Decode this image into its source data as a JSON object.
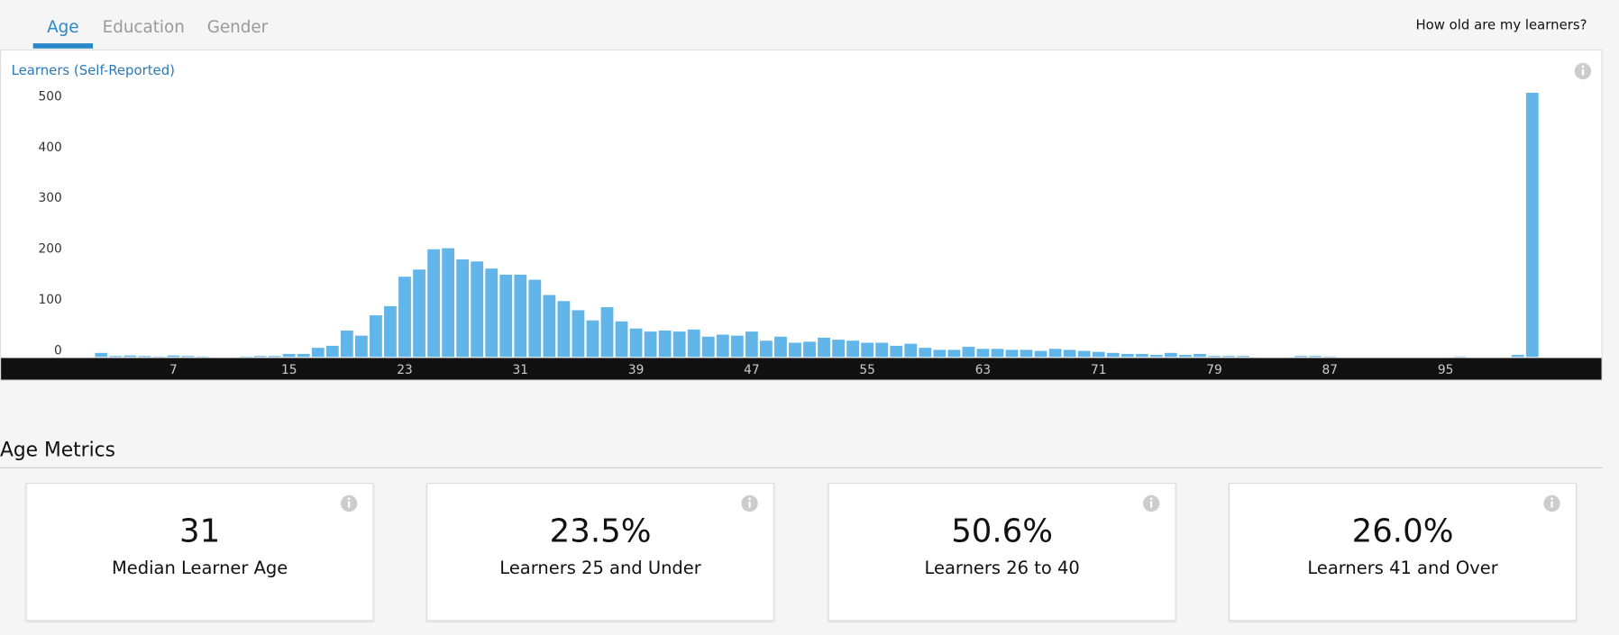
{
  "tabs": [
    "Age",
    "Education",
    "Gender"
  ],
  "help_text": "How old are my learners?",
  "chart_data": {
    "type": "bar",
    "ylabel": "Learners (Self-Reported)",
    "color": "#62b5e9",
    "x": [
      2,
      3,
      4,
      5,
      6,
      7,
      8,
      9,
      10,
      11,
      12,
      13,
      14,
      15,
      16,
      17,
      18,
      19,
      20,
      21,
      22,
      23,
      24,
      25,
      26,
      27,
      28,
      29,
      30,
      31,
      32,
      33,
      34,
      35,
      36,
      37,
      38,
      39,
      40,
      41,
      42,
      43,
      44,
      45,
      46,
      47,
      48,
      49,
      50,
      51,
      52,
      53,
      54,
      55,
      56,
      57,
      58,
      59,
      60,
      61,
      62,
      63,
      64,
      65,
      66,
      67,
      68,
      69,
      70,
      71,
      72,
      73,
      74,
      75,
      76,
      77,
      78,
      79,
      80,
      81,
      82,
      83,
      84,
      85,
      86,
      87,
      88,
      89,
      90,
      91,
      92,
      93,
      94,
      95,
      96,
      97,
      98,
      99,
      100,
      101
    ],
    "values": [
      8,
      2,
      3,
      2,
      1,
      3,
      2,
      1,
      0,
      0,
      1,
      2,
      2,
      6,
      6,
      18,
      22,
      52,
      42,
      82,
      100,
      158,
      172,
      212,
      214,
      192,
      188,
      174,
      162,
      162,
      152,
      122,
      110,
      92,
      72,
      98,
      70,
      56,
      50,
      52,
      50,
      54,
      40,
      44,
      42,
      50,
      32,
      40,
      28,
      30,
      38,
      34,
      32,
      28,
      28,
      22,
      26,
      18,
      14,
      14,
      20,
      16,
      16,
      14,
      14,
      12,
      16,
      14,
      12,
      10,
      8,
      6,
      6,
      4,
      8,
      4,
      6,
      2,
      2,
      2,
      0,
      0,
      0,
      2,
      2,
      1,
      0,
      0,
      0,
      0,
      0,
      0,
      0,
      0,
      1,
      0,
      0,
      0,
      4,
      520
    ],
    "xlim": [
      -5,
      106
    ],
    "xticks": [
      7,
      15,
      23,
      31,
      39,
      47,
      55,
      63,
      71,
      79,
      87,
      95
    ],
    "ylim": [
      0,
      530
    ],
    "yticks": [
      0,
      100,
      200,
      300,
      400,
      500
    ]
  },
  "metrics_title": "Age Metrics",
  "metrics": [
    {
      "value": "31",
      "label": "Median Learner Age"
    },
    {
      "value": "23.5%",
      "label": "Learners 25 and Under"
    },
    {
      "value": "50.6%",
      "label": "Learners 26 to 40"
    },
    {
      "value": "26.0%",
      "label": "Learners 41 and Over"
    }
  ]
}
